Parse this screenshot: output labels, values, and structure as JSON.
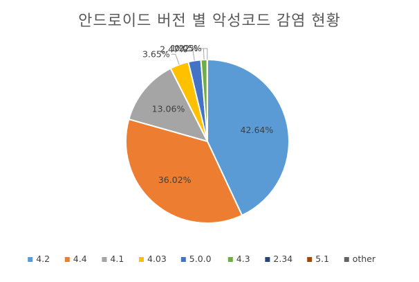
{
  "chart_data": {
    "type": "pie",
    "title": "안드로이드 버전 별 악성코드 감염 현황",
    "categories": [
      "4.2",
      "4.4",
      "4.1",
      "4.03",
      "5.0.0",
      "4.3",
      "2.34",
      "5.1",
      "other"
    ],
    "values": [
      42.64,
      36.02,
      13.06,
      3.65,
      2.47,
      1.22,
      0.05,
      0.0,
      0.0
    ],
    "value_labels": [
      "42.64%",
      "36.02%",
      "13.06%",
      "3.65%",
      "2.47%",
      "1.22%",
      "0.05%",
      "",
      ""
    ],
    "colors": [
      "#5B9BD5",
      "#ED7D31",
      "#A5A5A5",
      "#FFC000",
      "#4472C4",
      "#70AD47",
      "#264478",
      "#9E480E",
      "#636363"
    ],
    "legend": "bottom"
  }
}
